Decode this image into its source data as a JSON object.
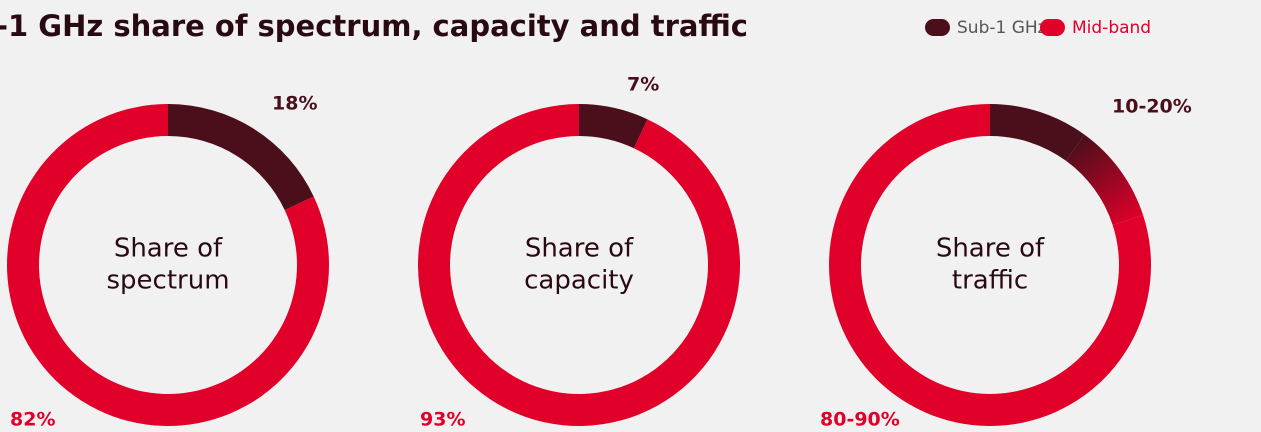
{
  "title": "-1 GHz share of spectrum, capacity and traffic",
  "legend": [
    {
      "name": "Sub-1 GHz",
      "color": "#4a0f1a"
    },
    {
      "name": "Mid-band",
      "color": "#e0002a"
    }
  ],
  "chart_data": [
    {
      "type": "donut",
      "center_label": [
        "Share of",
        "spectrum"
      ],
      "values": [
        18,
        82
      ],
      "value_labels": [
        "18%",
        "82%"
      ],
      "colors": [
        "#4a0f1a",
        "#e0002a"
      ]
    },
    {
      "type": "donut",
      "center_label": [
        "Share of",
        "capacity"
      ],
      "values": [
        7,
        93
      ],
      "value_labels": [
        "7%",
        "93%"
      ],
      "colors": [
        "#4a0f1a",
        "#e0002a"
      ]
    },
    {
      "type": "donut-range",
      "center_label": [
        "Share of",
        "traffic"
      ],
      "values": [
        [
          10,
          20
        ],
        [
          80,
          90
        ]
      ],
      "value_labels": [
        "10-20%",
        "80-90%"
      ],
      "colors": [
        "#4a0f1a",
        "#e0002a"
      ]
    }
  ]
}
